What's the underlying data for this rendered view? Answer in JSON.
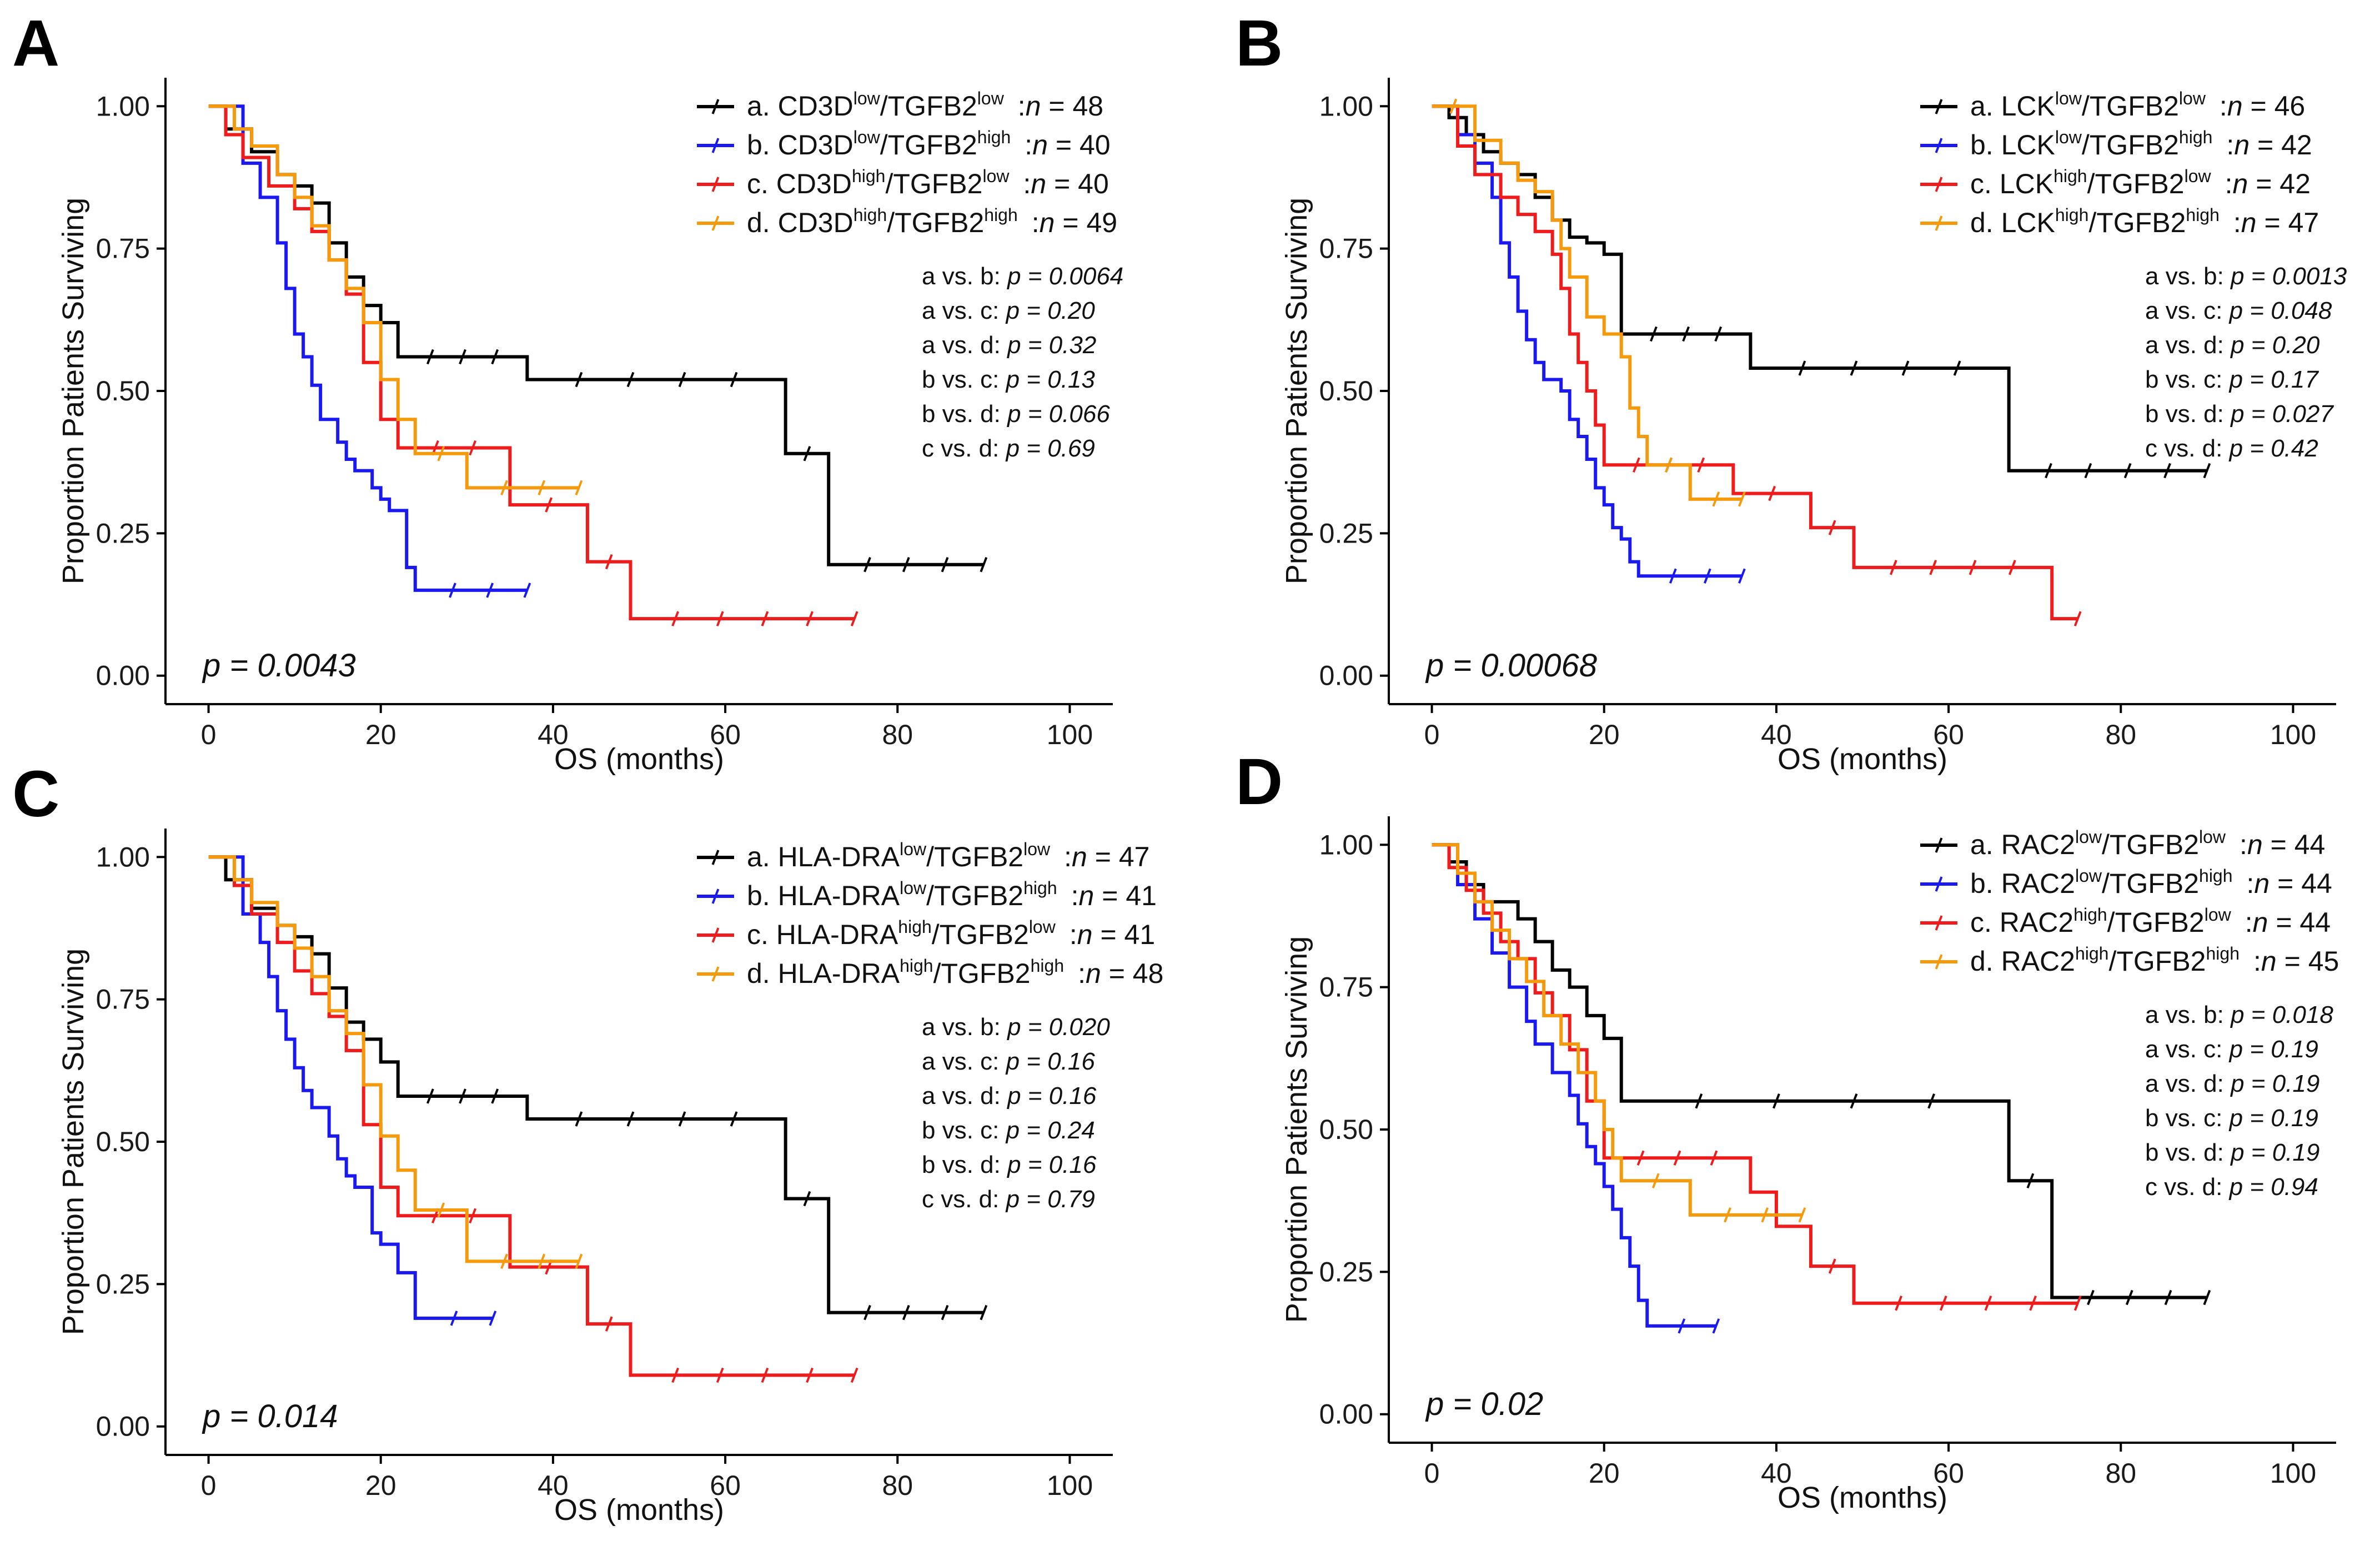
{
  "figure": {
    "xlabel": "OS (months)",
    "ylabel": "Proportion Patients Surviving",
    "x_ticks": [
      0,
      20,
      40,
      60,
      80,
      100
    ],
    "y_ticks": [
      "0.00",
      "0.25",
      "0.50",
      "0.75",
      "1.00"
    ],
    "xlim": [
      -5,
      105
    ],
    "ylim": [
      -0.05,
      1.05
    ],
    "colors": {
      "a": "#000000",
      "b": "#1a1af0",
      "c": "#ee1c1c",
      "d": "#f59a0c"
    }
  },
  "chart_data": [
    {
      "panel": "A",
      "type": "line",
      "title": "",
      "xlabel": "OS (months)",
      "ylabel": "Proportion Patients Surviving",
      "overall_p": "p = 0.0043",
      "legend": [
        {
          "key": "a",
          "prefix": "a. ",
          "gene": "CD3D",
          "gsup": "low",
          "tgf": "/TGFB2",
          "tsup": "low",
          "n": "48"
        },
        {
          "key": "b",
          "prefix": "b. ",
          "gene": "CD3D",
          "gsup": "low",
          "tgf": "/TGFB2",
          "tsup": "high",
          "n": "40"
        },
        {
          "key": "c",
          "prefix": "c. ",
          "gene": "CD3D",
          "gsup": "high",
          "tgf": "/TGFB2",
          "tsup": "low",
          "n": "40"
        },
        {
          "key": "d",
          "prefix": "d. ",
          "gene": "CD3D",
          "gsup": "high",
          "tgf": "/TGFB2",
          "tsup": "high",
          "n": "49"
        }
      ],
      "comparisons": [
        {
          "label": "a vs. b: ",
          "p": "p = 0.0064"
        },
        {
          "label": "a vs. c: ",
          "p": "p = 0.20"
        },
        {
          "label": "a vs. d: ",
          "p": "p = 0.32"
        },
        {
          "label": "b vs. c: ",
          "p": "p = 0.13"
        },
        {
          "label": "b vs. d: ",
          "p": "p = 0.066"
        },
        {
          "label": "c vs. d: ",
          "p": "p = 0.69"
        }
      ],
      "series": [
        {
          "key": "a",
          "x": [
            0,
            2,
            5,
            8,
            10,
            12,
            14,
            16,
            18,
            20,
            22,
            37,
            67,
            72,
            90
          ],
          "y": [
            1.0,
            0.96,
            0.92,
            0.88,
            0.86,
            0.83,
            0.76,
            0.7,
            0.65,
            0.62,
            0.56,
            0.52,
            0.39,
            0.195,
            0.195
          ]
        },
        {
          "key": "b",
          "x": [
            0,
            4,
            6,
            8,
            9,
            10,
            11,
            12,
            13,
            15,
            16,
            17,
            19,
            20,
            21,
            23,
            24,
            37
          ],
          "y": [
            1.0,
            0.9,
            0.84,
            0.76,
            0.68,
            0.6,
            0.56,
            0.51,
            0.45,
            0.41,
            0.38,
            0.36,
            0.33,
            0.31,
            0.29,
            0.19,
            0.15,
            0.15
          ]
        },
        {
          "key": "c",
          "x": [
            0,
            2,
            4,
            7,
            10,
            12,
            14,
            16,
            18,
            20,
            22,
            35,
            44,
            49,
            75
          ],
          "y": [
            1.0,
            0.95,
            0.91,
            0.86,
            0.82,
            0.78,
            0.73,
            0.67,
            0.55,
            0.45,
            0.4,
            0.3,
            0.2,
            0.1,
            0.1
          ]
        },
        {
          "key": "d",
          "x": [
            0,
            3,
            5,
            8,
            10,
            12,
            14,
            16,
            18,
            20,
            22,
            24,
            30,
            43
          ],
          "y": [
            1.0,
            0.96,
            0.93,
            0.88,
            0.84,
            0.79,
            0.73,
            0.68,
            0.62,
            0.52,
            0.45,
            0.39,
            0.33,
            0.33
          ]
        }
      ]
    },
    {
      "panel": "B",
      "type": "line",
      "title": "",
      "xlabel": "OS (months)",
      "ylabel": "Proportion Patients Surviving",
      "overall_p": "p = 0.00068",
      "legend": [
        {
          "key": "a",
          "prefix": "a. ",
          "gene": "LCK",
          "gsup": "low",
          "tgf": "/TGFB2",
          "tsup": "low",
          "n": "46"
        },
        {
          "key": "b",
          "prefix": "b. ",
          "gene": "LCK",
          "gsup": "low",
          "tgf": "/TGFB2",
          "tsup": "high",
          "n": "42"
        },
        {
          "key": "c",
          "prefix": "c. ",
          "gene": "LCK",
          "gsup": "high",
          "tgf": "/TGFB2",
          "tsup": "low",
          "n": "42"
        },
        {
          "key": "d",
          "prefix": "d. ",
          "gene": "LCK",
          "gsup": "high",
          "tgf": "/TGFB2",
          "tsup": "high",
          "n": "47"
        }
      ],
      "comparisons": [
        {
          "label": "a vs. b: ",
          "p": "p = 0.0013"
        },
        {
          "label": "a vs. c: ",
          "p": "p = 0.048"
        },
        {
          "label": "a vs. d: ",
          "p": "p = 0.20"
        },
        {
          "label": "b vs. c: ",
          "p": "p = 0.17"
        },
        {
          "label": "b vs. d: ",
          "p": "p = 0.027"
        },
        {
          "label": "c vs. d: ",
          "p": "p = 0.42"
        }
      ],
      "series": [
        {
          "key": "a",
          "x": [
            0,
            2,
            4,
            6,
            8,
            10,
            12,
            14,
            16,
            18,
            20,
            22,
            37,
            67,
            90
          ],
          "y": [
            1.0,
            0.98,
            0.95,
            0.92,
            0.9,
            0.88,
            0.84,
            0.8,
            0.77,
            0.76,
            0.74,
            0.6,
            0.54,
            0.36,
            0.36
          ]
        },
        {
          "key": "b",
          "x": [
            0,
            3,
            5,
            7,
            8,
            9,
            10,
            11,
            12,
            13,
            15,
            16,
            17,
            18,
            19,
            20,
            21,
            22,
            23,
            24,
            36
          ],
          "y": [
            1.0,
            0.95,
            0.9,
            0.84,
            0.76,
            0.7,
            0.64,
            0.59,
            0.55,
            0.52,
            0.5,
            0.45,
            0.42,
            0.38,
            0.33,
            0.3,
            0.26,
            0.24,
            0.2,
            0.175,
            0.175
          ]
        },
        {
          "key": "c",
          "x": [
            0,
            3,
            5,
            8,
            10,
            12,
            14,
            15,
            16,
            17,
            18,
            19,
            20,
            35,
            44,
            49,
            72,
            75
          ],
          "y": [
            1.0,
            0.93,
            0.88,
            0.84,
            0.81,
            0.78,
            0.74,
            0.68,
            0.6,
            0.55,
            0.5,
            0.44,
            0.37,
            0.32,
            0.26,
            0.19,
            0.1,
            0.1
          ]
        },
        {
          "key": "d",
          "x": [
            0,
            5,
            8,
            10,
            12,
            14,
            15,
            16,
            18,
            20,
            22,
            23,
            24,
            25,
            30,
            36
          ],
          "y": [
            1.0,
            0.94,
            0.9,
            0.87,
            0.85,
            0.8,
            0.75,
            0.7,
            0.63,
            0.6,
            0.56,
            0.47,
            0.42,
            0.37,
            0.31,
            0.31
          ]
        }
      ]
    },
    {
      "panel": "C",
      "type": "line",
      "title": "",
      "xlabel": "OS (months)",
      "ylabel": "Proportion Patients Surviving",
      "overall_p": "p = 0.014",
      "legend": [
        {
          "key": "a",
          "prefix": "a. ",
          "gene": "HLA-DRA",
          "gsup": "low",
          "tgf": "/TGFB2",
          "tsup": "low",
          "n": "47"
        },
        {
          "key": "b",
          "prefix": "b. ",
          "gene": "HLA-DRA",
          "gsup": "low",
          "tgf": "/TGFB2",
          "tsup": "high",
          "n": "41"
        },
        {
          "key": "c",
          "prefix": "c. ",
          "gene": "HLA-DRA",
          "gsup": "high",
          "tgf": "/TGFB2",
          "tsup": "low",
          "n": "41"
        },
        {
          "key": "d",
          "prefix": "d. ",
          "gene": "HLA-DRA",
          "gsup": "high",
          "tgf": "/TGFB2",
          "tsup": "high",
          "n": "48"
        }
      ],
      "comparisons": [
        {
          "label": "a vs. b: ",
          "p": "p = 0.020"
        },
        {
          "label": "a vs. c: ",
          "p": "p = 0.16"
        },
        {
          "label": "a vs. d: ",
          "p": "p = 0.16"
        },
        {
          "label": "b vs. c: ",
          "p": "p = 0.24"
        },
        {
          "label": "b vs. d: ",
          "p": "p = 0.16"
        },
        {
          "label": "c vs. d: ",
          "p": "p = 0.79"
        }
      ],
      "series": [
        {
          "key": "a",
          "x": [
            0,
            2,
            5,
            8,
            10,
            12,
            14,
            16,
            18,
            20,
            22,
            37,
            67,
            72,
            90
          ],
          "y": [
            1.0,
            0.96,
            0.91,
            0.88,
            0.86,
            0.83,
            0.77,
            0.71,
            0.68,
            0.64,
            0.58,
            0.54,
            0.4,
            0.2,
            0.2
          ]
        },
        {
          "key": "b",
          "x": [
            0,
            4,
            6,
            7,
            8,
            9,
            10,
            11,
            12,
            14,
            15,
            16,
            17,
            19,
            20,
            22,
            24,
            33
          ],
          "y": [
            1.0,
            0.9,
            0.85,
            0.79,
            0.73,
            0.68,
            0.63,
            0.59,
            0.56,
            0.51,
            0.47,
            0.44,
            0.42,
            0.34,
            0.32,
            0.27,
            0.19,
            0.19
          ]
        },
        {
          "key": "c",
          "x": [
            0,
            3,
            5,
            8,
            10,
            12,
            14,
            16,
            18,
            20,
            22,
            35,
            44,
            49,
            75
          ],
          "y": [
            1.0,
            0.95,
            0.9,
            0.85,
            0.8,
            0.76,
            0.72,
            0.66,
            0.53,
            0.42,
            0.37,
            0.28,
            0.18,
            0.09,
            0.09
          ]
        },
        {
          "key": "d",
          "x": [
            0,
            3,
            5,
            8,
            10,
            12,
            14,
            16,
            18,
            20,
            22,
            24,
            30,
            43
          ],
          "y": [
            1.0,
            0.96,
            0.92,
            0.88,
            0.84,
            0.79,
            0.73,
            0.69,
            0.6,
            0.51,
            0.45,
            0.38,
            0.29,
            0.29
          ]
        }
      ]
    },
    {
      "panel": "D",
      "type": "line",
      "title": "",
      "xlabel": "OS (months)",
      "ylabel": "Proportion Patients Surviving",
      "overall_p": "p = 0.02",
      "legend": [
        {
          "key": "a",
          "prefix": "a. ",
          "gene": "RAC2",
          "gsup": "low",
          "tgf": "/TGFB2",
          "tsup": "low",
          "n": "44"
        },
        {
          "key": "b",
          "prefix": "b. ",
          "gene": "RAC2",
          "gsup": "low",
          "tgf": "/TGFB2",
          "tsup": "high",
          "n": "44"
        },
        {
          "key": "c",
          "prefix": "c. ",
          "gene": "RAC2",
          "gsup": "high",
          "tgf": "/TGFB2",
          "tsup": "low",
          "n": "44"
        },
        {
          "key": "d",
          "prefix": "d. ",
          "gene": "RAC2",
          "gsup": "high",
          "tgf": "/TGFB2",
          "tsup": "high",
          "n": "45"
        }
      ],
      "comparisons": [
        {
          "label": "a vs. b: ",
          "p": "p = 0.018"
        },
        {
          "label": "a vs. c: ",
          "p": "p = 0.19"
        },
        {
          "label": "a vs. d: ",
          "p": "p = 0.19"
        },
        {
          "label": "b vs. c: ",
          "p": "p = 0.19"
        },
        {
          "label": "b vs. d: ",
          "p": "p = 0.19"
        },
        {
          "label": "c vs. d: ",
          "p": "p = 0.94"
        }
      ],
      "series": [
        {
          "key": "a",
          "x": [
            0,
            2,
            4,
            6,
            10,
            12,
            14,
            16,
            18,
            20,
            22,
            67,
            72,
            90
          ],
          "y": [
            1.0,
            0.97,
            0.93,
            0.9,
            0.87,
            0.83,
            0.78,
            0.75,
            0.7,
            0.66,
            0.55,
            0.41,
            0.205,
            0.205
          ]
        },
        {
          "key": "b",
          "x": [
            0,
            3,
            5,
            7,
            9,
            11,
            12,
            14,
            16,
            17,
            18,
            19,
            20,
            21,
            22,
            23,
            24,
            25,
            33
          ],
          "y": [
            1.0,
            0.93,
            0.87,
            0.81,
            0.75,
            0.69,
            0.65,
            0.6,
            0.56,
            0.51,
            0.47,
            0.44,
            0.4,
            0.36,
            0.31,
            0.26,
            0.2,
            0.155,
            0.155
          ]
        },
        {
          "key": "c",
          "x": [
            0,
            2,
            4,
            6,
            8,
            10,
            12,
            14,
            16,
            18,
            20,
            37,
            40,
            44,
            49,
            75
          ],
          "y": [
            1.0,
            0.96,
            0.92,
            0.88,
            0.83,
            0.8,
            0.74,
            0.7,
            0.64,
            0.55,
            0.45,
            0.39,
            0.33,
            0.26,
            0.195,
            0.195
          ]
        },
        {
          "key": "d",
          "x": [
            0,
            3,
            5,
            7,
            9,
            11,
            13,
            15,
            17,
            19,
            20,
            21,
            22,
            30,
            43
          ],
          "y": [
            1.0,
            0.95,
            0.9,
            0.85,
            0.8,
            0.76,
            0.7,
            0.65,
            0.6,
            0.55,
            0.5,
            0.45,
            0.41,
            0.35,
            0.35
          ]
        }
      ]
    }
  ]
}
